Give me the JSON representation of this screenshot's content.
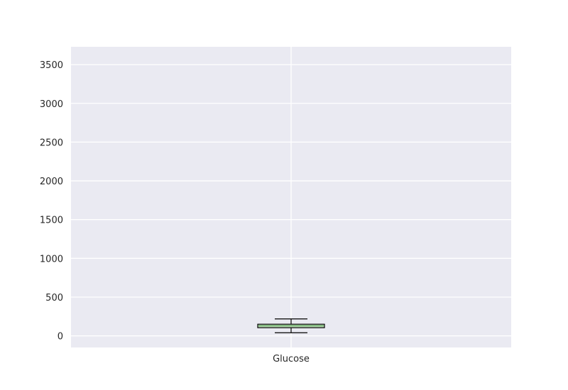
{
  "chart_data": {
    "type": "box",
    "categories": [
      "Glucose"
    ],
    "boxes": [
      {
        "name": "Glucose",
        "whisker_low": 40,
        "q1": 105,
        "median": 130,
        "q3": 150,
        "whisker_high": 218
      }
    ],
    "yticks": [
      0,
      500,
      1000,
      1500,
      2000,
      2500,
      3000,
      3500
    ],
    "ytick_labels": [
      "0",
      "500",
      "1000",
      "1500",
      "2000",
      "2500",
      "3000",
      "3500"
    ],
    "ylim": [
      -150,
      3730
    ],
    "grid": true,
    "colors": {
      "background": "#eaeaf2",
      "grid": "#ffffff",
      "box_fill": "#c9e6c3",
      "box_edge": "#000000",
      "median": "#5aa05a",
      "whisker": "#000000"
    }
  }
}
